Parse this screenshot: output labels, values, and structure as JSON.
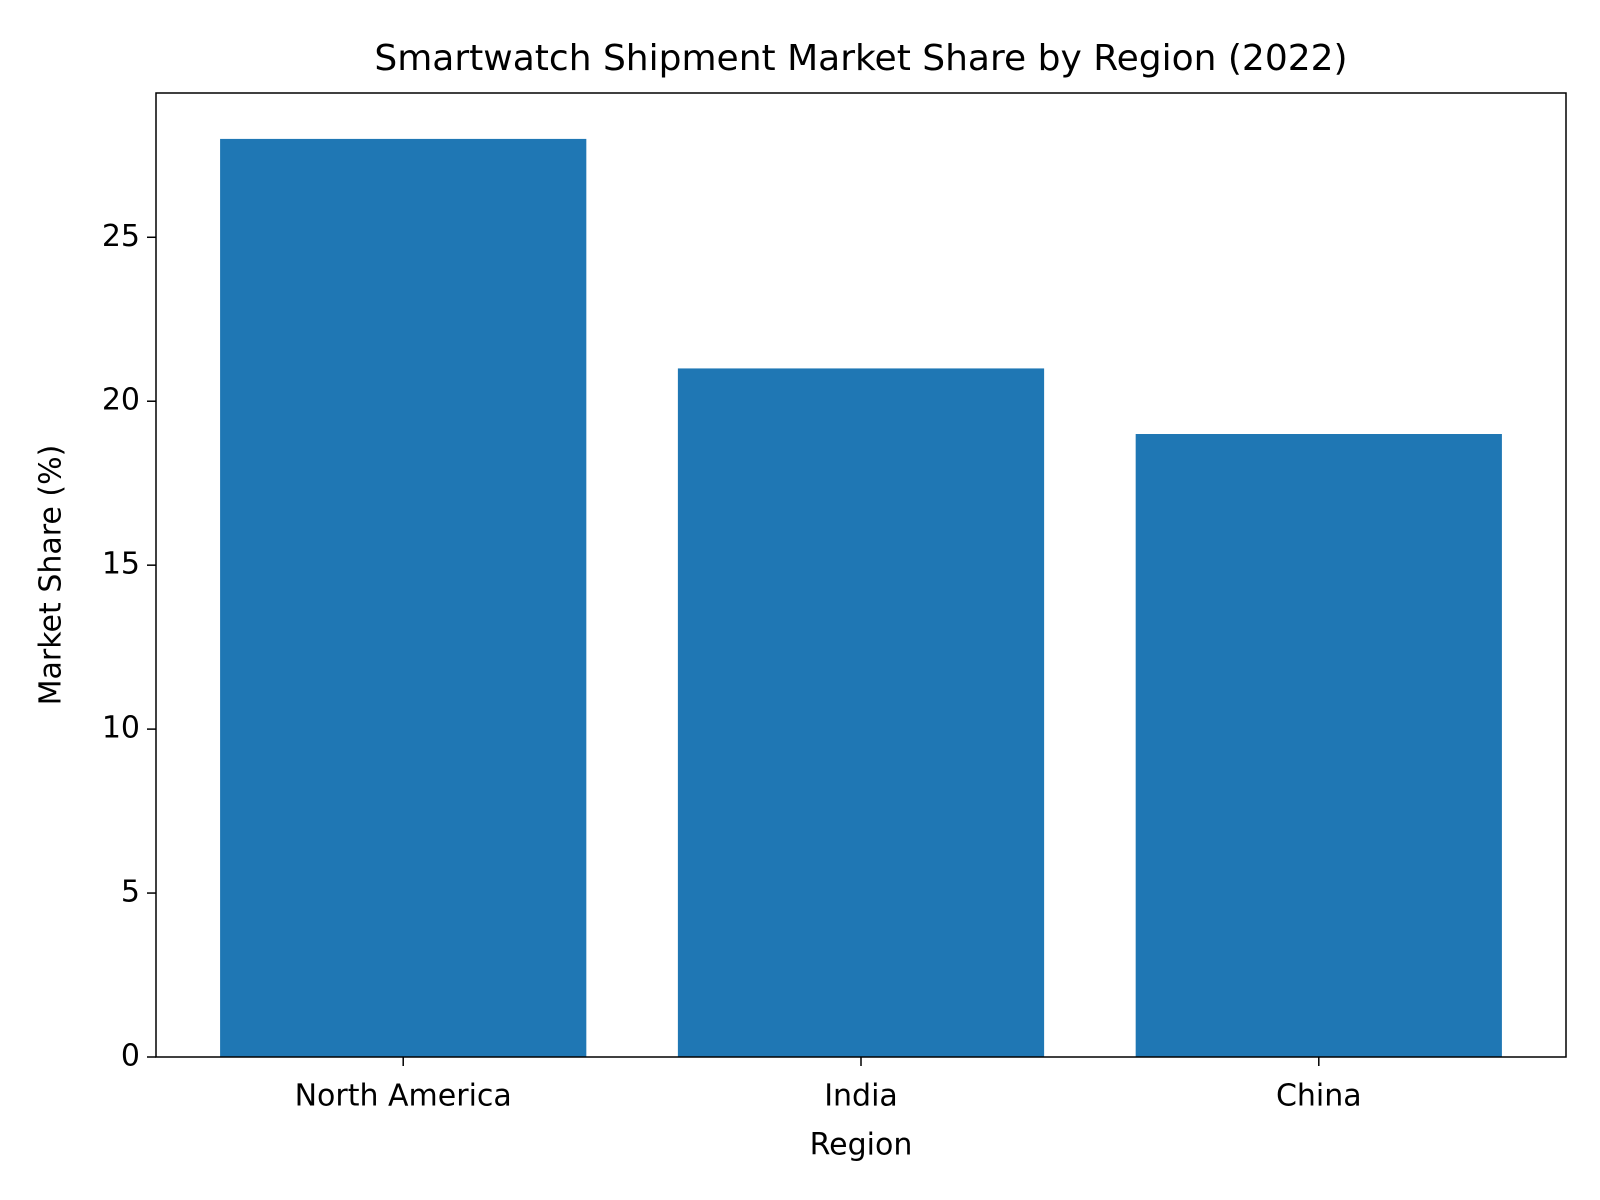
{
  "chart_data": {
    "type": "bar",
    "title": "Smartwatch Shipment Market Share by Region (2022)",
    "x_label": "Region",
    "y_label": "Market Share (%)",
    "categories": [
      "North America",
      "India",
      "China"
    ],
    "values": [
      28,
      21,
      19
    ],
    "color": "#1f77b4",
    "ylim": [
      0,
      29.4
    ],
    "yticks": [
      0,
      5,
      10,
      15,
      20,
      25
    ],
    "grid": false
  }
}
